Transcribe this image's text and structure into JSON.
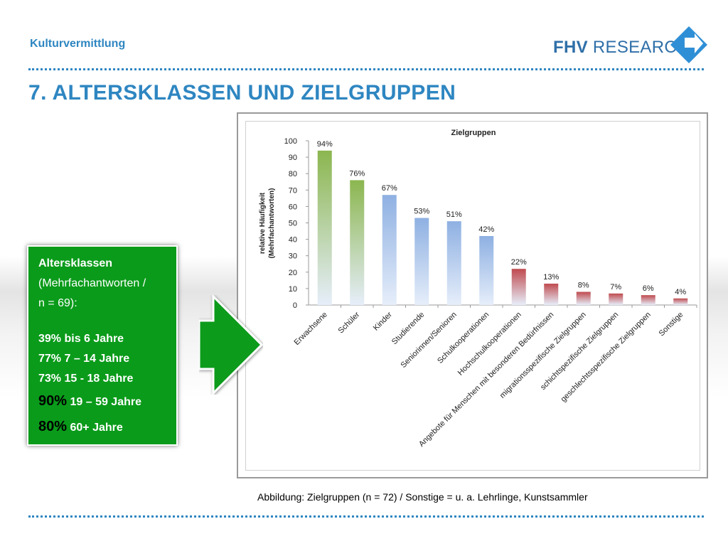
{
  "header": {
    "section_label": "Kulturvermittlung",
    "logo": {
      "bold": "FHV",
      "text": " RESEARCH",
      "mark": "diamond-arrow-logo"
    },
    "title": "7. Altersklassen und Zielgruppen"
  },
  "info_box": {
    "heading": "Altersklassen",
    "sub1": "(Mehrfachantworten /",
    "sub2": "n = 69):",
    "rows": [
      {
        "pct": "39%",
        "label": " bis 6 Jahre"
      },
      {
        "pct": "77%",
        "label": " 7 – 14 Jahre"
      },
      {
        "pct": "73%",
        "label": " 15 - 18 Jahre"
      },
      {
        "pct": "90%",
        "label": " 19 – 59 Jahre"
      },
      {
        "pct": "80%",
        "label": " 60+ Jahre"
      }
    ]
  },
  "caption": "Abbildung: Zielgruppen (n = 72) / Sonstige = u. a. Lehrlinge, Kunstsammler",
  "colors": {
    "accent": "#2e86c1",
    "box_green": "#0a9b1a",
    "bar_green": "#8bb64f",
    "bar_blue": "#8eb0e2",
    "bar_red": "#bf4b4f"
  },
  "chart_data": {
    "type": "bar",
    "title": "Zielgruppen",
    "ylabel": "relative Häufigkeit (Mehrfachantworten)",
    "ylabel_line1": "relative Häufigkeit",
    "ylabel_line2": "(Mehrfachantworten)",
    "ylim": [
      0,
      100
    ],
    "yticks": [
      0,
      10,
      20,
      30,
      40,
      50,
      60,
      70,
      80,
      90,
      100
    ],
    "grid": false,
    "categories": [
      "Erwachsene",
      "Schüler",
      "Kinder",
      "Studierende",
      "Seniorinnen/Senioren",
      "Schulkooperationen",
      "Hochschulkooperationen",
      "Angebote für Menschen mit besonderen Bedürfnissen",
      "migrationsspezifische Zielgruppen",
      "schichtspezifische Zielgruppen",
      "geschlechtsspezifische Zielgruppen",
      "Sonstige"
    ],
    "values": [
      94,
      76,
      67,
      53,
      51,
      42,
      22,
      13,
      8,
      7,
      6,
      4
    ],
    "value_labels": [
      "94%",
      "76%",
      "67%",
      "53%",
      "51%",
      "42%",
      "22%",
      "13%",
      "8%",
      "7%",
      "6%",
      "4%"
    ],
    "bar_colors": [
      "green",
      "green",
      "blue",
      "blue",
      "blue",
      "blue",
      "red",
      "red",
      "red",
      "red",
      "red",
      "red"
    ]
  }
}
